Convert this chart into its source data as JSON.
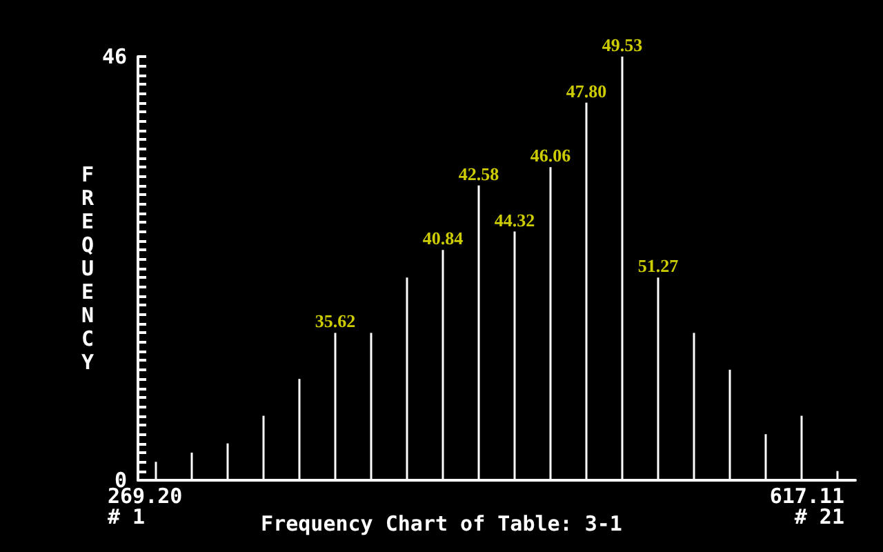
{
  "chart_data": {
    "type": "bar",
    "title": "Frequency Chart of Table: 3-1",
    "ylabel": "FREQUENCY",
    "categories": [
      null,
      null,
      null,
      null,
      null,
      null,
      null,
      null,
      null,
      null,
      null,
      null,
      null,
      null,
      null,
      null,
      null,
      null,
      null,
      null
    ],
    "values": [
      2,
      3,
      4,
      7,
      11,
      16,
      16,
      22,
      25,
      32,
      27,
      34,
      41,
      46,
      22,
      16,
      12,
      5,
      7,
      1
    ],
    "color": "#ffffff",
    "annotations": [
      "269.20",
      "# 1",
      "617.11",
      "# 21",
      {
        "text": "35.62",
        "y": 16
      },
      {
        "text": "40.84",
        "y": 25
      },
      {
        "text": "42.58",
        "y": 32
      },
      {
        "text": "44.32",
        "y": 27
      },
      {
        "text": "46.06",
        "y": 34
      },
      {
        "text": "47.80",
        "y": 41
      },
      {
        "text": "49.53",
        "y": 46
      },
      {
        "text": "51.27",
        "y": 22
      }
    ],
    "ylim": [
      0,
      46
    ],
    "yticks": [
      0,
      {
        "value": 1,
        "label": null
      },
      {
        "value": 2,
        "label": null
      },
      {
        "value": 3,
        "label": null
      },
      {
        "value": 4,
        "label": null
      },
      {
        "value": 5,
        "label": null
      },
      {
        "value": 6,
        "label": null
      },
      {
        "value": 7,
        "label": null
      },
      {
        "value": 8,
        "label": null
      },
      {
        "value": 9,
        "label": null
      },
      {
        "value": 10,
        "label": null
      },
      {
        "value": 11,
        "label": null
      },
      {
        "value": 12,
        "label": null
      },
      {
        "value": 13,
        "label": null
      },
      {
        "value": 14,
        "label": null
      },
      {
        "value": 15,
        "label": null
      },
      {
        "value": 16,
        "label": null
      },
      {
        "value": 17,
        "label": null
      },
      {
        "value": 18,
        "label": null
      },
      {
        "value": 19,
        "label": null
      },
      {
        "value": 20,
        "label": null
      },
      {
        "value": 21,
        "label": null
      },
      {
        "value": 22,
        "label": null
      },
      {
        "value": 23,
        "label": null
      },
      {
        "value": 24,
        "label": null
      },
      {
        "value": 25,
        "label": null
      },
      {
        "value": 26,
        "label": null
      },
      {
        "value": 27,
        "label": null
      },
      {
        "value": 28,
        "label": null
      },
      {
        "value": 29,
        "label": null
      },
      {
        "value": 30,
        "label": null
      },
      {
        "value": 31,
        "label": null
      },
      {
        "value": 32,
        "label": null
      },
      {
        "value": 33,
        "label": null
      },
      {
        "value": 34,
        "label": null
      },
      {
        "value": 35,
        "label": null
      },
      {
        "value": 36,
        "label": null
      },
      {
        "value": 37,
        "label": null
      },
      {
        "value": 38,
        "label": null
      },
      {
        "value": 39,
        "label": null
      },
      {
        "value": 40,
        "label": null
      },
      {
        "value": 41,
        "label": null
      },
      {
        "value": 42,
        "label": null
      },
      {
        "value": 43,
        "label": null
      },
      {
        "value": 44,
        "label": null
      },
      {
        "value": 45,
        "label": null
      },
      46
    ],
    "grid": false
  }
}
